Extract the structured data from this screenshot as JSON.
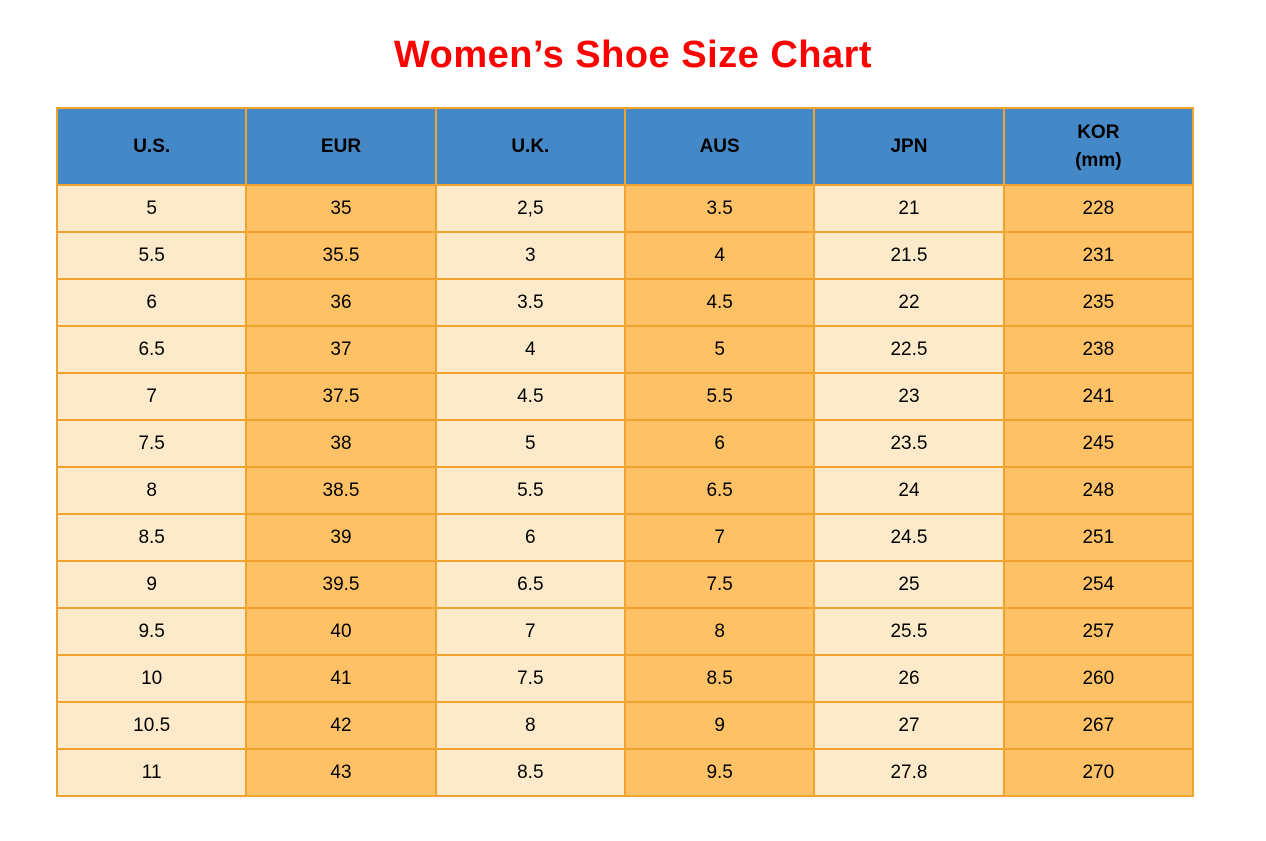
{
  "title": {
    "text": "Women’s Shoe Size Chart",
    "color": "#fe0000"
  },
  "table": {
    "headers": [
      "U.S.",
      "EUR",
      "U.K.",
      "AUS",
      "JPN",
      "KOR\n(mm)"
    ],
    "colors": {
      "header_bg": "#4588c7",
      "header_text": "#000000",
      "column_light_bg": "#fdeaca",
      "column_orange_bg": "#fec166",
      "border": "#f0a32e",
      "cell_text": "#000000"
    }
  },
  "chart_data": {
    "type": "table",
    "title": "Women’s Shoe Size Chart",
    "columns": [
      "U.S.",
      "EUR",
      "U.K.",
      "AUS",
      "JPN",
      "KOR (mm)"
    ],
    "rows": [
      [
        "5",
        "35",
        "2,5",
        "3.5",
        "21",
        "228"
      ],
      [
        "5.5",
        "35.5",
        "3",
        "4",
        "21.5",
        "231"
      ],
      [
        "6",
        "36",
        "3.5",
        "4.5",
        "22",
        "235"
      ],
      [
        "6.5",
        "37",
        "4",
        "5",
        "22.5",
        "238"
      ],
      [
        "7",
        "37.5",
        "4.5",
        "5.5",
        "23",
        "241"
      ],
      [
        "7.5",
        "38",
        "5",
        "6",
        "23.5",
        "245"
      ],
      [
        "8",
        "38.5",
        "5.5",
        "6.5",
        "24",
        "248"
      ],
      [
        "8.5",
        "39",
        "6",
        "7",
        "24.5",
        "251"
      ],
      [
        "9",
        "39.5",
        "6.5",
        "7.5",
        "25",
        "254"
      ],
      [
        "9.5",
        "40",
        "7",
        "8",
        "25.5",
        "257"
      ],
      [
        "10",
        "41",
        "7.5",
        "8.5",
        "26",
        "260"
      ],
      [
        "10.5",
        "42",
        "8",
        "9",
        "27",
        "267"
      ],
      [
        "11",
        "43",
        "8.5",
        "9.5",
        "27.8",
        "270"
      ]
    ]
  }
}
